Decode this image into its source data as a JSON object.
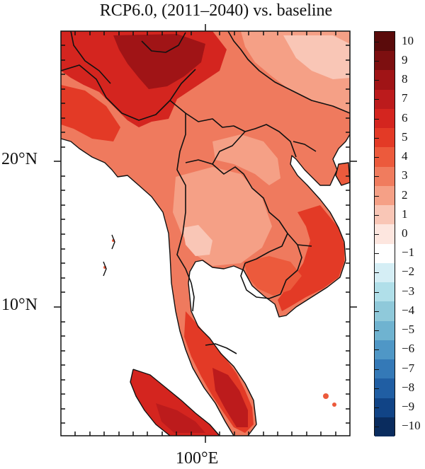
{
  "title": "RCP6.0, (2011–2040) vs. baseline",
  "axes": {
    "lat_labels": [
      "20°N",
      "10°N"
    ],
    "lon_labels": [
      "100°E"
    ]
  },
  "colorbar": {
    "labels": [
      "10",
      "9",
      "8",
      "7",
      "6",
      "5",
      "4",
      "3",
      "2",
      "1",
      "0",
      "−1",
      "−2",
      "−3",
      "−4",
      "−5",
      "−6",
      "−7",
      "−8",
      "−9",
      "−10"
    ],
    "colors": [
      "#5a0b0b",
      "#7d0f10",
      "#a01416",
      "#bc1b1c",
      "#d4251f",
      "#e33a26",
      "#ec5a3c",
      "#f07c5e",
      "#f5a086",
      "#f9c6b6",
      "#fde6df",
      "#ffffff",
      "#d5eef5",
      "#b0dfe9",
      "#8fc9da",
      "#6fb3d0",
      "#4f97c6",
      "#3479b7",
      "#205ea3",
      "#114486",
      "#0a2c5e"
    ]
  }
}
